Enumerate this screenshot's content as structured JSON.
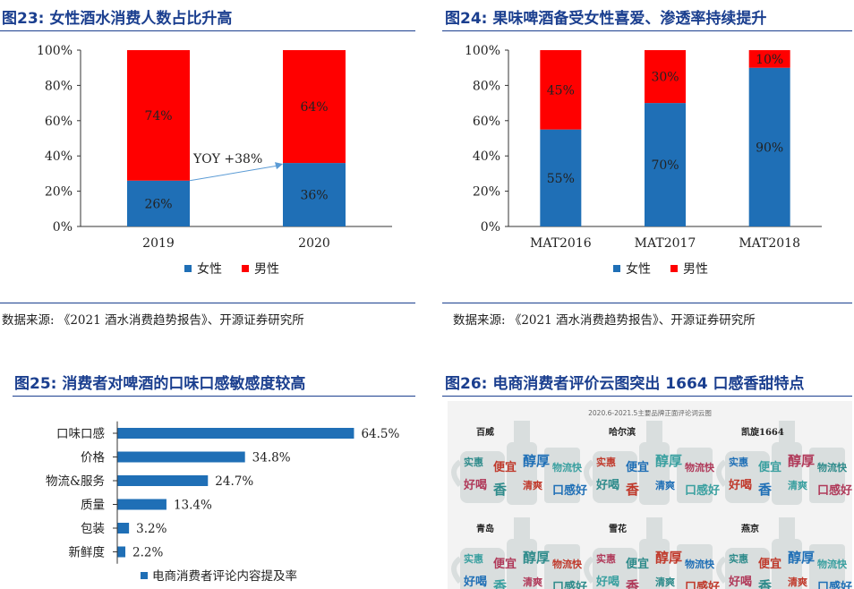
{
  "figures": [
    {
      "title": "图23:  女性酒水消费人数占比升高",
      "source": "数据来源:  《2021 酒水消费趋势报告》、开源证券研究所"
    },
    {
      "title": "图24:  果味啤酒备受女性喜爱、渗透率持续提升",
      "source": "数据来源:  《2021 酒水消费趋势报告》、开源证券研究所"
    },
    {
      "title": "图25:  消费者对啤酒的口味口感敏感度较高"
    },
    {
      "title": "图26:  电商消费者评价云图突出 1664 口感香甜特点"
    }
  ],
  "colors": {
    "female": "#1f6fb6",
    "male": "#ff0000",
    "bar25": "#1f6fb6",
    "title": "#1b3f8f",
    "arrow": "#5b9bd5"
  },
  "chart_data": [
    {
      "type": "bar",
      "stacked": true,
      "categories": [
        "2019",
        "2020"
      ],
      "series": [
        {
          "name": "女性",
          "values": [
            26,
            36
          ],
          "labels": [
            "26%",
            "36%"
          ]
        },
        {
          "name": "男性",
          "values": [
            74,
            64
          ],
          "labels": [
            "74%",
            "64%"
          ]
        }
      ],
      "yticks": [
        "0%",
        "20%",
        "40%",
        "60%",
        "80%",
        "100%"
      ],
      "ylim": [
        0,
        100
      ],
      "annotation": "YOY +38%",
      "legend": "bottom"
    },
    {
      "type": "bar",
      "stacked": true,
      "categories": [
        "MAT2016",
        "MAT2017",
        "MAT2018"
      ],
      "series": [
        {
          "name": "女性",
          "values": [
            55,
            70,
            90
          ],
          "labels": [
            "55%",
            "70%",
            "90%"
          ]
        },
        {
          "name": "男性",
          "values": [
            45,
            30,
            10
          ],
          "labels": [
            "45%",
            "30%",
            "10%"
          ]
        }
      ],
      "yticks": [
        "0%",
        "20%",
        "40%",
        "60%",
        "80%",
        "100%"
      ],
      "ylim": [
        0,
        100
      ],
      "legend": "bottom"
    },
    {
      "type": "bar",
      "orientation": "horizontal",
      "categories": [
        "口味口感",
        "价格",
        "物流&服务",
        "质量",
        "包装",
        "新鲜度"
      ],
      "series": [
        {
          "name": "电商消费者评论内容提及率",
          "values": [
            64.5,
            34.8,
            24.7,
            13.4,
            3.2,
            2.2
          ],
          "labels": [
            "64.5%",
            "34.8%",
            "24.7%",
            "13.4%",
            "3.2%",
            "2.2%"
          ]
        }
      ],
      "legend": "bottom"
    }
  ],
  "word_cloud": {
    "subtitle": "2020.6-2021.5主要品牌正面评论词云图",
    "brands": [
      "百威",
      "哈尔滨",
      "凯旋1664",
      "青岛",
      "雪花",
      "燕京"
    ],
    "words": [
      "实惠",
      "便宜",
      "醇厚",
      "物流快",
      "好喝",
      "香",
      "清爽",
      "口感好"
    ]
  }
}
